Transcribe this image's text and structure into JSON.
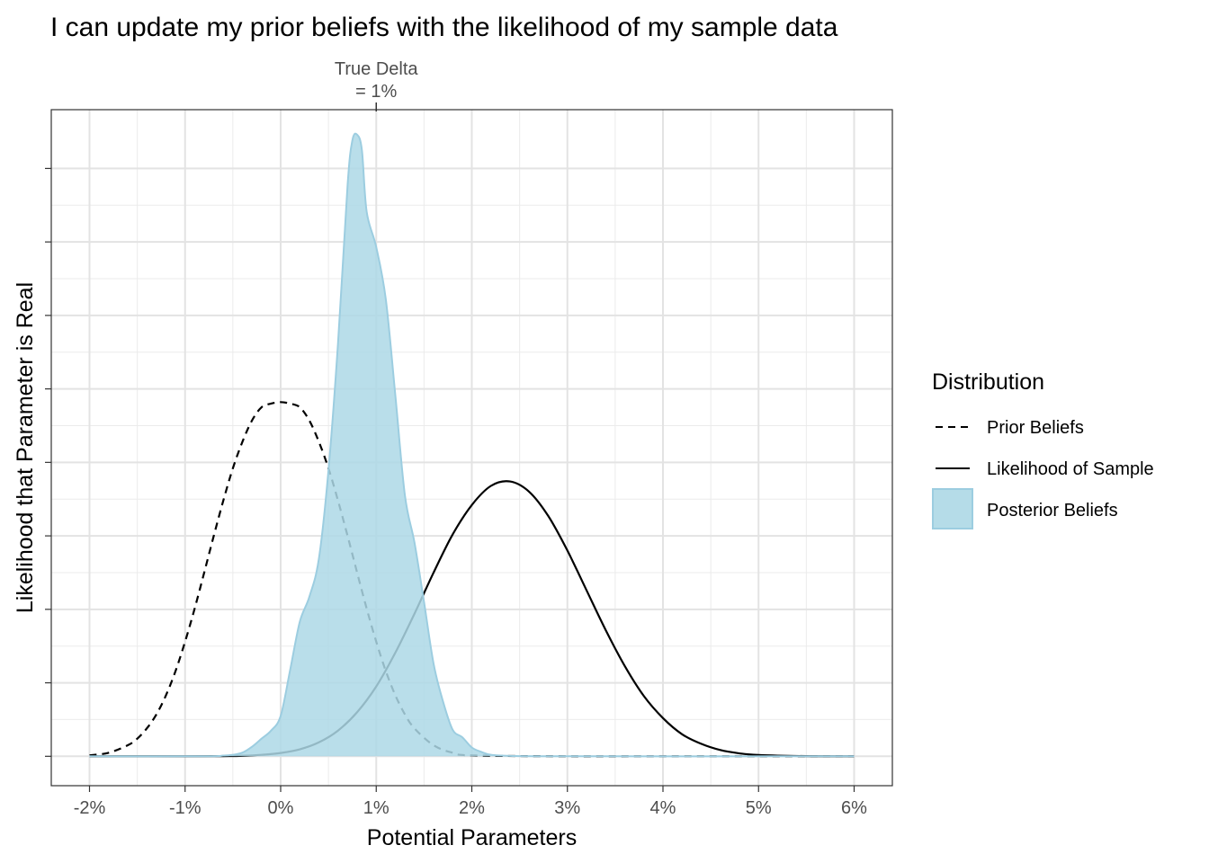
{
  "chart_data": {
    "type": "area",
    "title": "I can update my prior beliefs with the likelihood of my sample data",
    "xlabel": "Potential Parameters",
    "ylabel": "Likelihood that Parameter is Real",
    "xlim": [
      -0.024,
      0.064
    ],
    "ylim": [
      -0.04,
      0.88
    ],
    "x_ticks": [
      -0.02,
      -0.01,
      0.0,
      0.01,
      0.02,
      0.03,
      0.04,
      0.05,
      0.06
    ],
    "x_tick_labels": [
      "-2%",
      "-1%",
      "0%",
      "1%",
      "2%",
      "3%",
      "4%",
      "5%",
      "6%"
    ],
    "y_gridlines": [
      0,
      0.1,
      0.2,
      0.3,
      0.4,
      0.5,
      0.6,
      0.7,
      0.8
    ],
    "y_tick_labels_shown": false,
    "grid": true,
    "legend": {
      "title": "Distribution",
      "position": "right",
      "entries": [
        "Prior Beliefs",
        "Likelihood of Sample",
        "Posterior Beliefs"
      ]
    },
    "annotation": {
      "x": 0.01,
      "line1": "True Delta",
      "line2": "= 1%"
    },
    "series": [
      {
        "name": "Prior Beliefs",
        "style": "dashed",
        "color": "#000000",
        "x": [
          -0.02,
          -0.018,
          -0.016,
          -0.015,
          -0.014,
          -0.013,
          -0.012,
          -0.011,
          -0.01,
          -0.009,
          -0.008,
          -0.007,
          -0.006,
          -0.005,
          -0.004,
          -0.003,
          -0.002,
          -0.001,
          0.0,
          0.001,
          0.002,
          0.003,
          0.004,
          0.005,
          0.006,
          0.007,
          0.008,
          0.009,
          0.01,
          0.011,
          0.012,
          0.013,
          0.014,
          0.016,
          0.018,
          0.02,
          0.03,
          0.04,
          0.06
        ],
        "y": [
          0.0012,
          0.0048,
          0.015,
          0.024,
          0.038,
          0.057,
          0.083,
          0.116,
          0.156,
          0.201,
          0.25,
          0.3,
          0.348,
          0.392,
          0.428,
          0.457,
          0.475,
          0.48,
          0.482,
          0.48,
          0.475,
          0.457,
          0.428,
          0.392,
          0.348,
          0.3,
          0.25,
          0.201,
          0.156,
          0.116,
          0.083,
          0.057,
          0.038,
          0.015,
          0.0048,
          0.0012,
          0.0,
          0.0,
          0.0
        ]
      },
      {
        "name": "Likelihood of Sample",
        "style": "solid",
        "color": "#000000",
        "x": [
          -0.02,
          -0.01,
          -0.006,
          -0.004,
          -0.002,
          0.0,
          0.002,
          0.004,
          0.006,
          0.008,
          0.01,
          0.012,
          0.014,
          0.016,
          0.018,
          0.02,
          0.022,
          0.024,
          0.026,
          0.028,
          0.03,
          0.032,
          0.034,
          0.036,
          0.038,
          0.04,
          0.042,
          0.044,
          0.046,
          0.048,
          0.05,
          0.055,
          0.06
        ],
        "y": [
          0.0,
          0.0,
          0.0002,
          0.0007,
          0.002,
          0.0045,
          0.0095,
          0.019,
          0.035,
          0.06,
          0.095,
          0.141,
          0.194,
          0.25,
          0.302,
          0.342,
          0.368,
          0.374,
          0.36,
          0.327,
          0.28,
          0.226,
          0.172,
          0.123,
          0.082,
          0.052,
          0.03,
          0.017,
          0.0085,
          0.004,
          0.0018,
          0.0002,
          0.0
        ]
      },
      {
        "name": "Posterior Beliefs",
        "style": "filled",
        "color": "#add8e6",
        "x": [
          -0.02,
          -0.008,
          -0.006,
          -0.005,
          -0.004,
          -0.003,
          -0.002,
          -0.001,
          0.0,
          0.001,
          0.002,
          0.003,
          0.004,
          0.005,
          0.006,
          0.007,
          0.0075,
          0.008,
          0.0085,
          0.009,
          0.01,
          0.011,
          0.012,
          0.013,
          0.014,
          0.015,
          0.016,
          0.017,
          0.018,
          0.019,
          0.02,
          0.021,
          0.022,
          0.024,
          0.03,
          0.06
        ],
        "y": [
          0.0,
          0.0,
          0.001,
          0.002,
          0.005,
          0.013,
          0.024,
          0.035,
          0.055,
          0.118,
          0.183,
          0.217,
          0.269,
          0.389,
          0.562,
          0.777,
          0.838,
          0.846,
          0.825,
          0.741,
          0.693,
          0.622,
          0.491,
          0.355,
          0.291,
          0.21,
          0.126,
          0.074,
          0.036,
          0.026,
          0.012,
          0.006,
          0.002,
          0.0005,
          0.0,
          0.0
        ]
      }
    ]
  }
}
